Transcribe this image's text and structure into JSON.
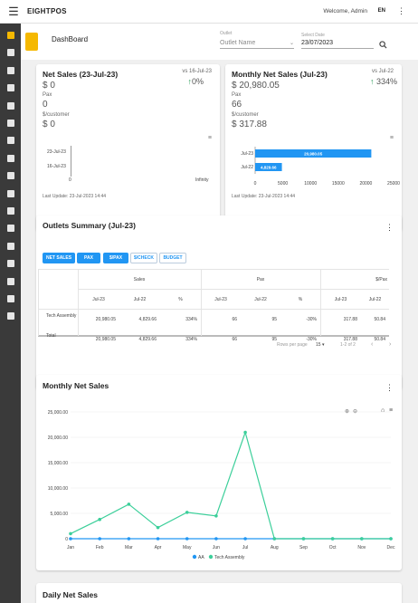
{
  "header": {
    "brand": "EIGHTPOS",
    "welcome": "Welcome, Admin",
    "lang": "EN"
  },
  "toolbar": {
    "title": "DashBoard",
    "outlet_label": "Outlet",
    "outlet_placeholder": "Outlet Name",
    "date_label": "Select Date",
    "date_value": "23/07/2023"
  },
  "sidebar": {
    "items": [
      "dashboard",
      "reports",
      "orders",
      "refresh",
      "analytics",
      "tools",
      "payments",
      "terminal",
      "cart",
      "printer",
      "cafe",
      "qr",
      "store",
      "bed",
      "contacts",
      "chat",
      "desktop"
    ]
  },
  "net_sales": {
    "title": "Net Sales (23-Jul-23)",
    "compare": "vs 16-Jul-23",
    "value": "$ 0",
    "pct": "0%",
    "pax_label": "Pax",
    "pax": "0",
    "per_label": "$/customer",
    "per": "$ 0",
    "chart_y": [
      "23-Jul-23",
      "16-Jul-23"
    ],
    "chart_x_min": "0",
    "chart_x_max": "Infinity",
    "last_update": "Last Update: 23-Jul-2023 14:44"
  },
  "monthly_card": {
    "title": "Monthly Net Sales (Jul-23)",
    "compare": "vs Jul-22",
    "value": "$ 20,980.05",
    "pct": "334%",
    "pax_label": "Pax",
    "pax": "66",
    "per_label": "$/customer",
    "per": "$ 317.88",
    "last_update": "Last Update: 23-Jul-2023 14:44"
  },
  "outlets": {
    "title": "Outlets Summary (Jul-23)",
    "buttons": [
      "NET SALES",
      "PAX",
      "$/PAX",
      "$/CHECK",
      "BUDGET"
    ],
    "groups": [
      "Sales",
      "Pax",
      "$/Pax"
    ],
    "subheaders": [
      "Jul-23",
      "Jul-22",
      "%",
      "Jul-23",
      "Jul-22",
      "%",
      "Jul-23",
      "Jul-22"
    ],
    "rows": [
      {
        "name": "Tech Assembly",
        "cells": [
          "20,980.05",
          "4,829.66",
          "334%",
          "66",
          "95",
          "-30%",
          "317.88",
          "50.84"
        ]
      },
      {
        "name": "Total",
        "cells": [
          "20,980.05",
          "4,829.66",
          "334%",
          "66",
          "95",
          "-30%",
          "317.88",
          "50.84"
        ]
      }
    ],
    "rows_per_page_label": "Rows per page",
    "rows_per_page": "15",
    "range": "1-2 of 2"
  },
  "monthly_chart": {
    "title": "Monthly Net Sales"
  },
  "daily": {
    "title": "Daily Net Sales"
  },
  "chart_data": [
    {
      "type": "bar",
      "title": "Net Sales (23-Jul-23)",
      "categories": [
        "23-Jul-23",
        "16-Jul-23"
      ],
      "values": [
        0,
        0
      ],
      "xlim_labels": [
        "0",
        "Infinity"
      ]
    },
    {
      "type": "bar",
      "title": "Monthly Net Sales (Jul-23)",
      "orientation": "horizontal",
      "categories": [
        "Jul-23",
        "Jul-22"
      ],
      "values": [
        20980.05,
        4829.66
      ],
      "value_labels": [
        "20,980.05",
        "4,829.66"
      ],
      "xticks": [
        0,
        5000,
        10000,
        15000,
        20000,
        25000
      ],
      "xlim": [
        0,
        25000
      ],
      "color": "#2196f3"
    },
    {
      "type": "line",
      "title": "Monthly Net Sales",
      "categories": [
        "Jan",
        "Feb",
        "Mar",
        "Apr",
        "May",
        "Jun",
        "Jul",
        "Aug",
        "Sep",
        "Oct",
        "Nov",
        "Dec"
      ],
      "series": [
        {
          "name": "AA",
          "color": "#2196f3",
          "values": [
            0,
            0,
            0,
            0,
            0,
            0,
            0,
            0,
            0,
            0,
            0,
            0
          ]
        },
        {
          "name": "Tech Assembly",
          "color": "#3ccf9a",
          "values": [
            1000,
            3800,
            6800,
            2200,
            5200,
            4500,
            20980,
            0,
            0,
            0,
            0,
            0
          ]
        }
      ],
      "yticks": [
        "0",
        "5,000.00",
        "10,000.00",
        "15,000.00",
        "20,000.00",
        "25,000.00"
      ],
      "ylim": [
        0,
        25000
      ],
      "legend": "bottom"
    }
  ]
}
